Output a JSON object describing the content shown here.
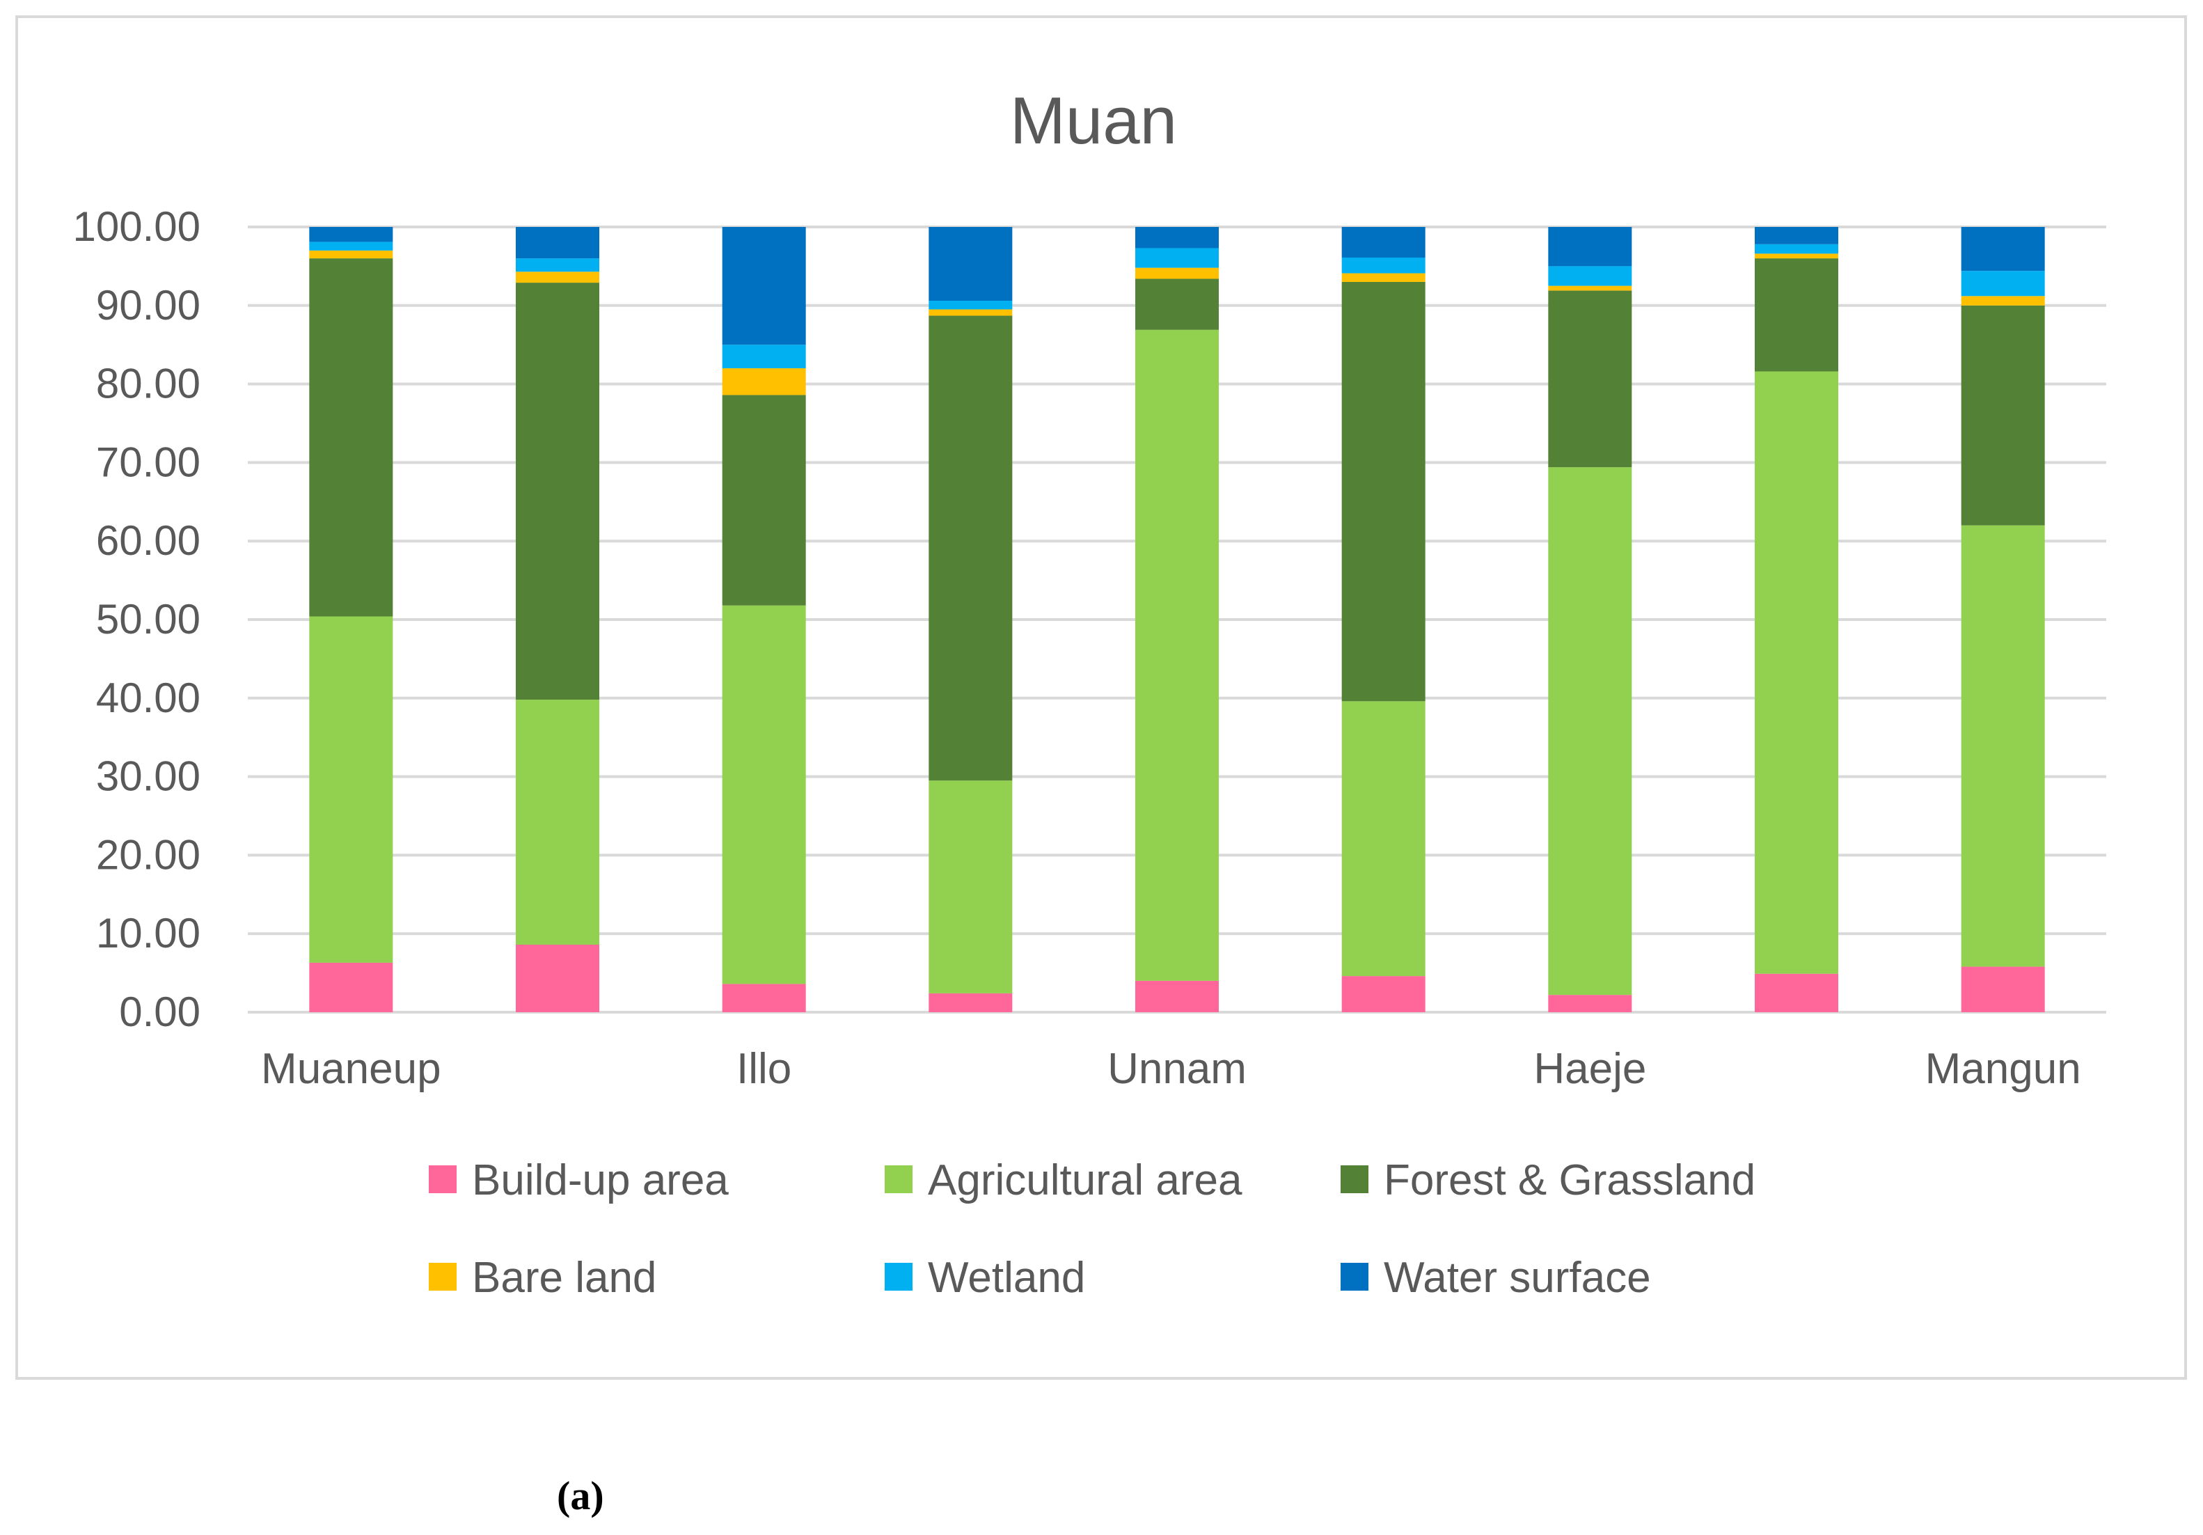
{
  "chart_data": {
    "type": "bar",
    "stacked": true,
    "title": "Muan",
    "xlabel": "",
    "ylabel": "",
    "ylim": [
      0,
      100
    ],
    "y_ticks": [
      "0.00",
      "10.00",
      "20.00",
      "30.00",
      "40.00",
      "50.00",
      "60.00",
      "70.00",
      "80.00",
      "90.00",
      "100.00"
    ],
    "x_tick_labels": [
      "Muaneup",
      "Illo",
      "Unnam",
      "Haeje",
      "Mangun"
    ],
    "categories": [
      "Muaneup",
      "",
      "Illo",
      "",
      "Unnam",
      "",
      "Haeje",
      "",
      "Mangun"
    ],
    "grid": true,
    "legend_position": "bottom",
    "series": [
      {
        "name": "Build-up area",
        "color": "#ff6699",
        "values": [
          6.3,
          8.6,
          3.6,
          2.4,
          4.0,
          4.6,
          2.2,
          4.9,
          5.8
        ]
      },
      {
        "name": "Agricultural area",
        "color": "#92d050",
        "values": [
          44.1,
          31.2,
          48.2,
          27.1,
          82.9,
          35.0,
          67.2,
          76.7,
          56.2
        ]
      },
      {
        "name": "Forest & Grassland",
        "color": "#538135",
        "values": [
          45.6,
          53.1,
          26.8,
          59.2,
          6.5,
          53.4,
          22.5,
          14.4,
          28.0
        ]
      },
      {
        "name": "Bare land",
        "color": "#ffc000",
        "values": [
          1.0,
          1.4,
          3.4,
          0.8,
          1.4,
          1.1,
          0.6,
          0.6,
          1.2
        ]
      },
      {
        "name": "Wetland",
        "color": "#00b0f0",
        "values": [
          1.1,
          1.7,
          3.0,
          1.1,
          2.5,
          2.0,
          2.5,
          1.2,
          3.2
        ]
      },
      {
        "name": "Water surface",
        "color": "#0070c0",
        "values": [
          1.9,
          4.0,
          15.0,
          9.4,
          2.7,
          3.9,
          5.0,
          2.2,
          5.6
        ]
      }
    ]
  },
  "caption": "(a)"
}
